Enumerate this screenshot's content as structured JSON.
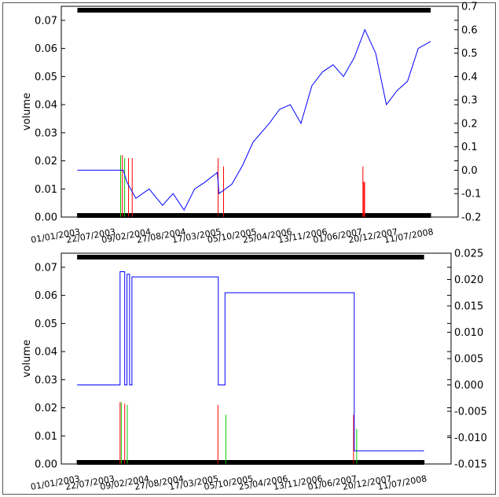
{
  "chart_data": [
    {
      "type": "line",
      "title": "",
      "ylabel": "volume",
      "xlabel": "",
      "ylim_left": [
        0,
        0.075
      ],
      "ylim_right": [
        -0.2,
        0.7
      ],
      "yticks_left": [
        "0.00",
        "0.01",
        "0.02",
        "0.03",
        "0.04",
        "0.05",
        "0.06",
        "0.07"
      ],
      "yticks_right": [
        "-0.2",
        "-0.1",
        "0.0",
        "0.1",
        "0.2",
        "0.3",
        "0.4",
        "0.5",
        "0.6",
        "0.7"
      ],
      "xticks": [
        "01/01/2003",
        "22/07/2003",
        "09/02/2004",
        "27/08/2004",
        "17/03/2005",
        "05/10/2005",
        "25/04/2006",
        "13/11/2006",
        "01/06/2007",
        "20/12/2007",
        "11/07/2008"
      ],
      "series": [
        {
          "axis": "right",
          "color": "#0000ff",
          "points": [
            [
              "2003-01-01",
              0.0
            ],
            [
              "2003-09-20",
              0.0
            ],
            [
              "2003-10-10",
              -0.05
            ],
            [
              "2003-12-01",
              -0.12
            ],
            [
              "2004-02-15",
              -0.08
            ],
            [
              "2004-05-01",
              -0.15
            ],
            [
              "2004-07-01",
              -0.1
            ],
            [
              "2004-09-01",
              -0.17
            ],
            [
              "2004-11-01",
              -0.08
            ],
            [
              "2005-01-01",
              -0.05
            ],
            [
              "2005-03-10",
              -0.01
            ],
            [
              "2005-03-20",
              -0.1
            ],
            [
              "2005-06-01",
              -0.06
            ],
            [
              "2005-08-01",
              0.02
            ],
            [
              "2005-10-01",
              0.12
            ],
            [
              "2006-01-01",
              0.2
            ],
            [
              "2006-03-01",
              0.26
            ],
            [
              "2006-05-01",
              0.28
            ],
            [
              "2006-07-01",
              0.2
            ],
            [
              "2006-09-01",
              0.36
            ],
            [
              "2006-11-01",
              0.42
            ],
            [
              "2007-01-01",
              0.45
            ],
            [
              "2007-03-01",
              0.4
            ],
            [
              "2007-05-01",
              0.48
            ],
            [
              "2007-07-01",
              0.6
            ],
            [
              "2007-09-01",
              0.5
            ],
            [
              "2007-11-01",
              0.28
            ],
            [
              "2008-01-01",
              0.34
            ],
            [
              "2008-03-01",
              0.38
            ],
            [
              "2008-05-01",
              0.52
            ],
            [
              "2008-07-11",
              0.55
            ]
          ]
        }
      ],
      "bars": [
        {
          "color": "#00cc00",
          "items": [
            [
              "2003-01-03",
              0.0008
            ],
            [
              "2003-09-05",
              0.022
            ],
            [
              "2003-09-28",
              0.021
            ]
          ]
        },
        {
          "color": "#ff0000",
          "items": [
            [
              "2003-09-15",
              0.022
            ],
            [
              "2003-10-20",
              0.021
            ],
            [
              "2003-11-10",
              0.021
            ],
            [
              "2005-03-15",
              0.021
            ],
            [
              "2005-04-15",
              0.018
            ],
            [
              "2007-06-20",
              0.018
            ],
            [
              "2007-06-25",
              0.0125
            ],
            [
              "2007-06-30",
              0.0125
            ]
          ]
        }
      ]
    },
    {
      "type": "line",
      "title": "",
      "ylabel": "volume",
      "xlabel": "",
      "ylim_left": [
        0,
        0.075
      ],
      "ylim_right": [
        -0.015,
        0.025
      ],
      "yticks_left": [
        "0.00",
        "0.01",
        "0.02",
        "0.03",
        "0.04",
        "0.05",
        "0.06",
        "0.07"
      ],
      "yticks_right": [
        "-0.015",
        "-0.010",
        "-0.005",
        "0.000",
        "0.005",
        "0.010",
        "0.015",
        "0.020",
        "0.025"
      ],
      "xticks": [
        "01/01/2003",
        "22/07/2003",
        "09/02/2004",
        "27/08/2004",
        "17/03/2005",
        "05/10/2005",
        "25/04/2006",
        "13/11/2006",
        "01/06/2007",
        "20/12/2007",
        "11/07/2008"
      ],
      "series": [
        {
          "axis": "right",
          "color": "#0000ff",
          "step": true,
          "points": [
            [
              "2003-01-01",
              0.0
            ],
            [
              "2003-09-08",
              0.0
            ],
            [
              "2003-09-08",
              0.0215
            ],
            [
              "2003-10-05",
              0.0215
            ],
            [
              "2003-10-05",
              0.0
            ],
            [
              "2003-10-18",
              0.0
            ],
            [
              "2003-10-18",
              0.021
            ],
            [
              "2003-11-02",
              0.021
            ],
            [
              "2003-11-02",
              0.0
            ],
            [
              "2003-11-16",
              0.0
            ],
            [
              "2003-11-16",
              0.0205
            ],
            [
              "2005-04-01",
              0.0205
            ],
            [
              "2005-04-01",
              0.0
            ],
            [
              "2005-05-10",
              0.0
            ],
            [
              "2005-05-10",
              0.0175
            ],
            [
              "2007-06-01",
              0.0175
            ],
            [
              "2007-06-01",
              -0.0125
            ],
            [
              "2008-07-11",
              -0.0125
            ]
          ]
        }
      ],
      "bars": [
        {
          "color": "#00cc00",
          "items": [
            [
              "2003-09-15",
              0.022
            ],
            [
              "2003-10-20",
              0.021
            ],
            [
              "2005-05-15",
              0.0175
            ],
            [
              "2007-06-15",
              0.0125
            ]
          ]
        },
        {
          "color": "#ff0000",
          "items": [
            [
              "2003-09-08",
              0.022
            ],
            [
              "2003-10-05",
              0.0215
            ],
            [
              "2005-03-30",
              0.021
            ],
            [
              "2007-05-28",
              0.0175
            ]
          ]
        }
      ]
    }
  ]
}
